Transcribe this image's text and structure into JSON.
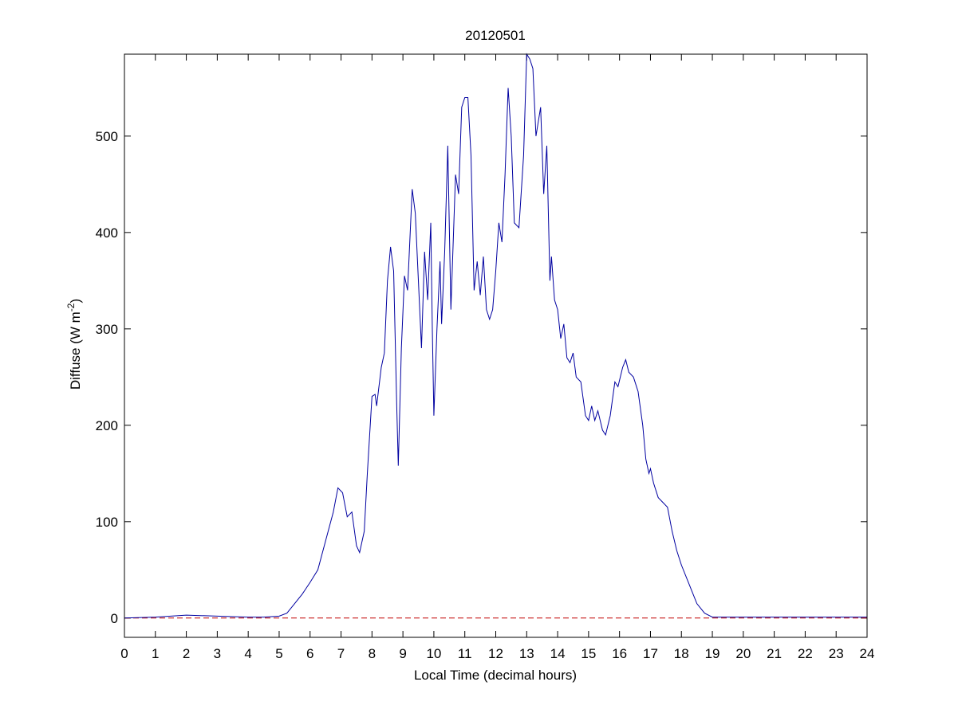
{
  "chart_data": {
    "type": "line",
    "title": "20120501",
    "xlabel": "Local Time (decimal hours)",
    "ylabel": {
      "base": "Diffuse (W m",
      "superscript": "-2",
      "suffix": ")"
    },
    "xlim": [
      0,
      24
    ],
    "ylim": [
      -20,
      585
    ],
    "xticks": [
      0,
      1,
      2,
      3,
      4,
      5,
      6,
      7,
      8,
      9,
      10,
      11,
      12,
      13,
      14,
      15,
      16,
      17,
      18,
      19,
      20,
      21,
      22,
      23,
      24
    ],
    "yticks": [
      0,
      100,
      200,
      300,
      400,
      500
    ],
    "hlines": [
      {
        "value": 0,
        "color": "#c00000",
        "style": "dashed"
      }
    ],
    "series": [
      {
        "color": "#0000a0",
        "x": [
          0,
          1,
          2,
          3,
          4,
          4.5,
          5,
          5.25,
          5.5,
          5.75,
          6,
          6.25,
          6.5,
          6.75,
          6.9,
          7.05,
          7.2,
          7.35,
          7.5,
          7.6,
          7.75,
          7.85,
          8.0,
          8.1,
          8.15,
          8.3,
          8.4,
          8.5,
          8.6,
          8.7,
          8.8,
          8.85,
          8.95,
          9.05,
          9.15,
          9.3,
          9.4,
          9.5,
          9.6,
          9.7,
          9.8,
          9.9,
          9.95,
          10.0,
          10.1,
          10.2,
          10.25,
          10.35,
          10.45,
          10.55,
          10.7,
          10.8,
          10.9,
          11.0,
          11.1,
          11.2,
          11.3,
          11.4,
          11.5,
          11.6,
          11.7,
          11.8,
          11.9,
          12.0,
          12.1,
          12.2,
          12.3,
          12.4,
          12.5,
          12.6,
          12.75,
          12.9,
          13.0,
          13.1,
          13.2,
          13.3,
          13.45,
          13.55,
          13.65,
          13.75,
          13.8,
          13.9,
          14.0,
          14.1,
          14.2,
          14.3,
          14.4,
          14.5,
          14.6,
          14.75,
          14.9,
          15.0,
          15.1,
          15.2,
          15.3,
          15.45,
          15.55,
          15.7,
          15.85,
          15.95,
          16.1,
          16.2,
          16.3,
          16.45,
          16.6,
          16.75,
          16.85,
          16.95,
          17.0,
          17.1,
          17.25,
          17.4,
          17.55,
          17.7,
          17.85,
          18.0,
          18.25,
          18.5,
          18.75,
          19.0,
          19.5,
          20,
          21,
          22,
          23,
          24
        ],
        "values": [
          0,
          1,
          3,
          2,
          1,
          1,
          2,
          5,
          15,
          25,
          37,
          50,
          80,
          110,
          135,
          130,
          105,
          110,
          75,
          68,
          90,
          150,
          230,
          232,
          220,
          260,
          275,
          350,
          385,
          360,
          220,
          158,
          280,
          355,
          340,
          445,
          420,
          350,
          280,
          380,
          330,
          410,
          300,
          210,
          300,
          370,
          305,
          380,
          490,
          320,
          460,
          440,
          530,
          540,
          540,
          480,
          340,
          370,
          335,
          375,
          320,
          310,
          320,
          360,
          410,
          390,
          460,
          550,
          500,
          410,
          405,
          480,
          585,
          580,
          570,
          500,
          530,
          440,
          490,
          350,
          375,
          330,
          320,
          290,
          305,
          270,
          265,
          275,
          250,
          245,
          210,
          205,
          220,
          205,
          215,
          195,
          190,
          210,
          245,
          240,
          260,
          268,
          255,
          250,
          235,
          200,
          165,
          150,
          155,
          140,
          125,
          120,
          115,
          90,
          70,
          55,
          35,
          15,
          5,
          1,
          1,
          1,
          1,
          1,
          1,
          1
        ]
      }
    ]
  }
}
